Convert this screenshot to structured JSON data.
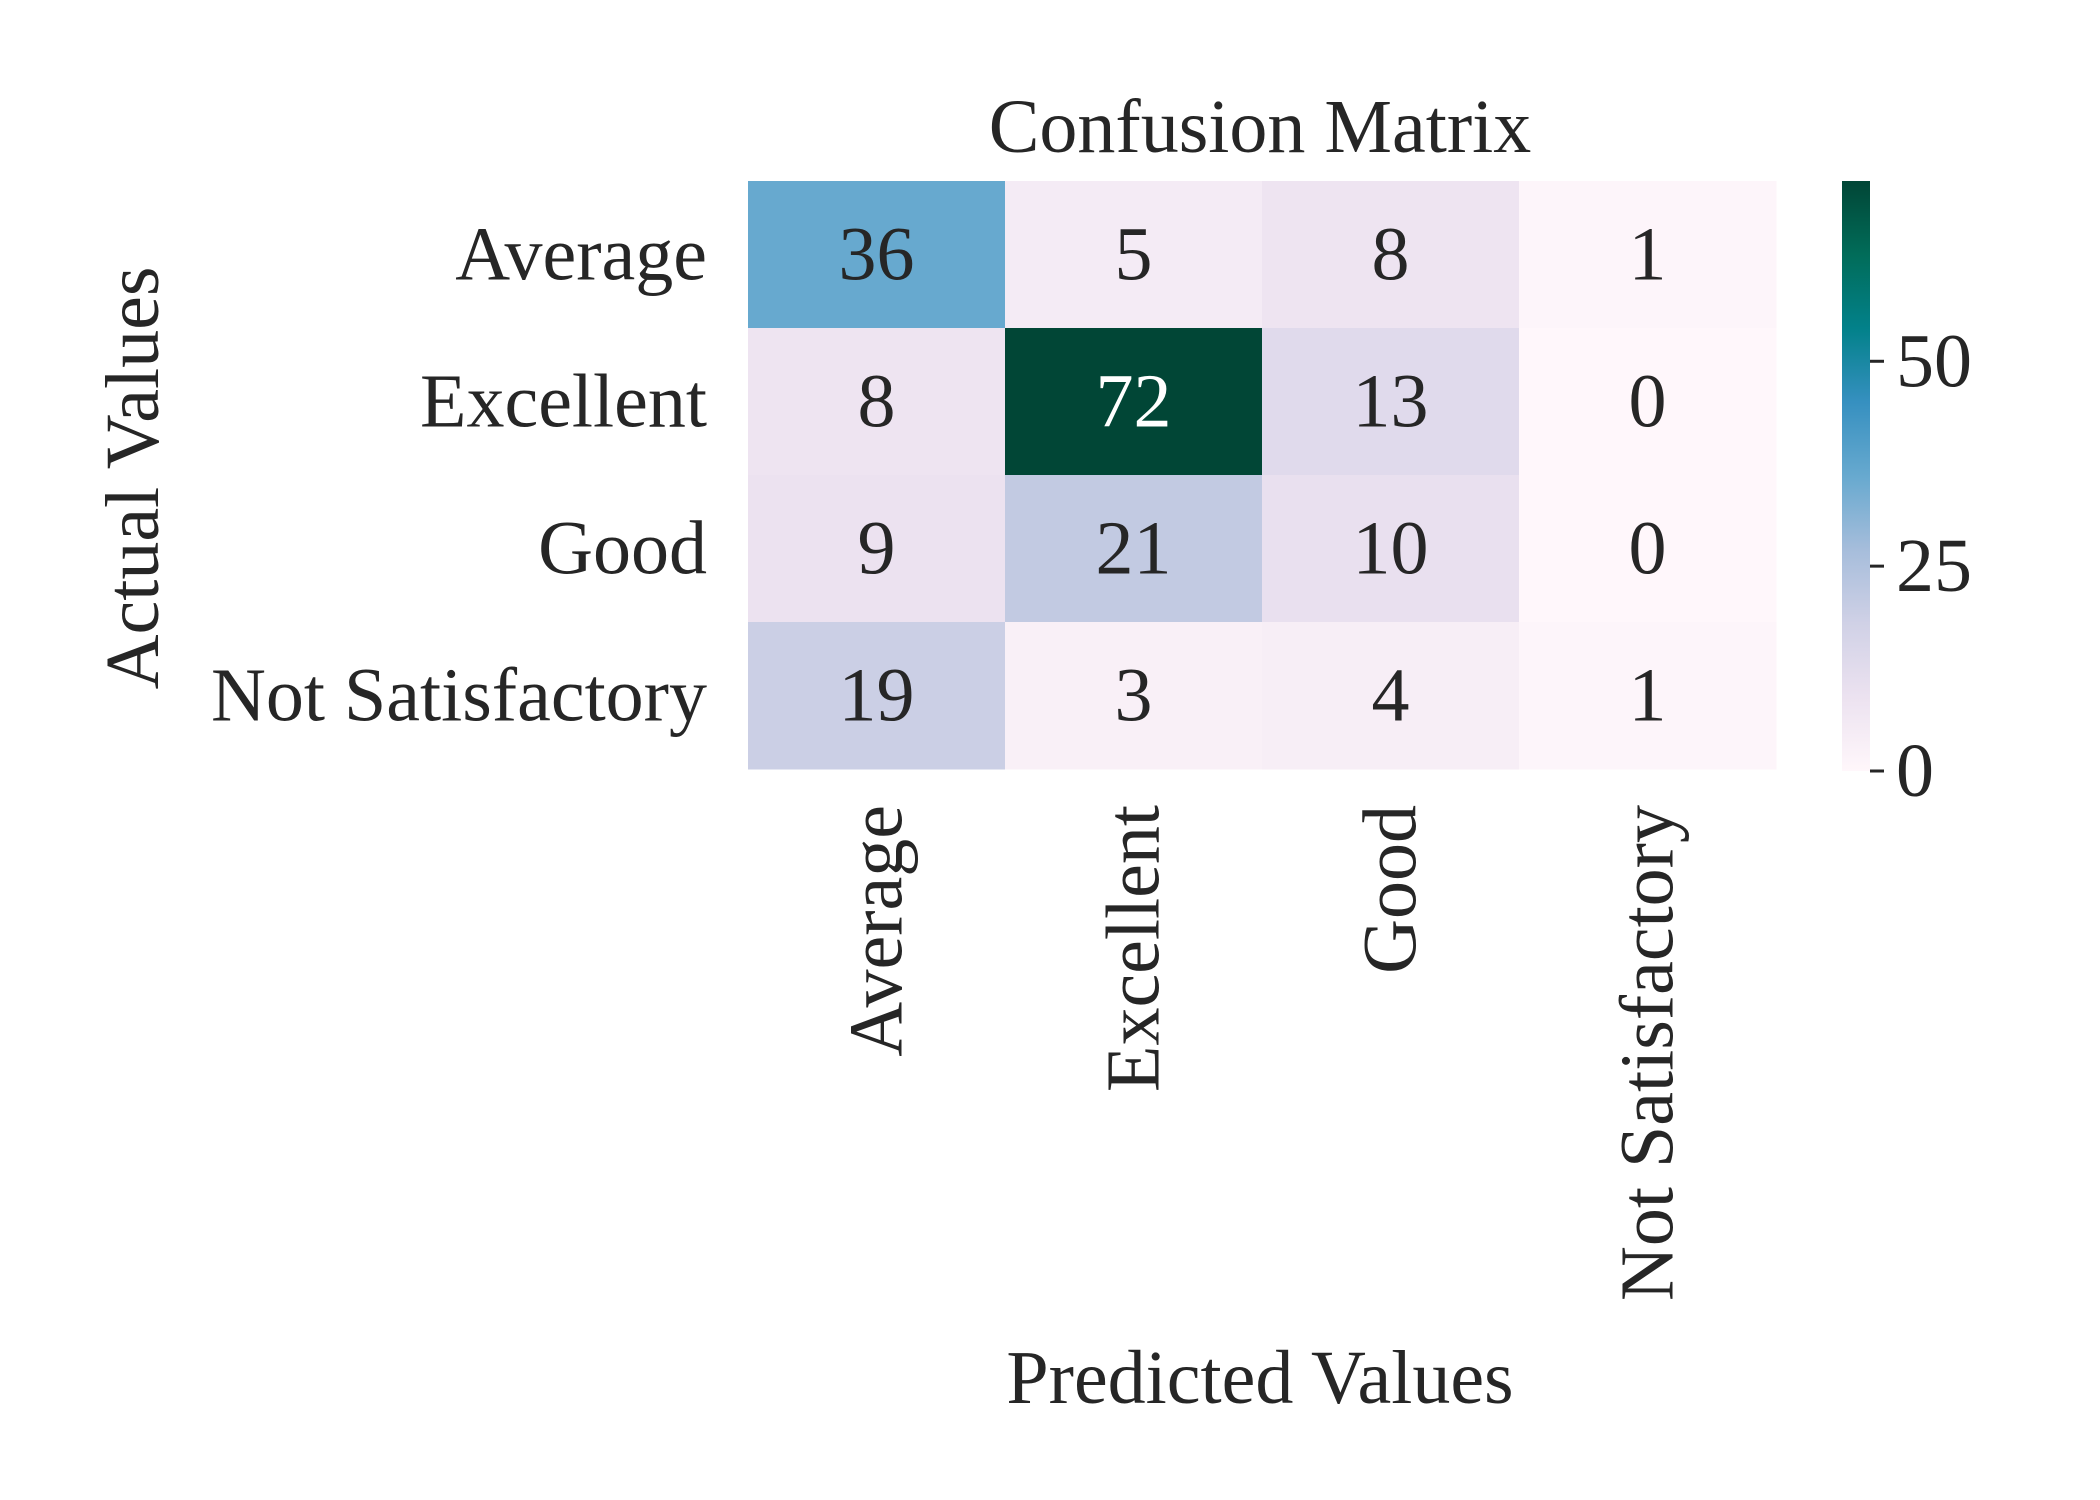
{
  "chart_data": {
    "type": "heatmap",
    "title": "Confusion Matrix",
    "xlabel": "Predicted Values",
    "ylabel": "Actual Values",
    "row_labels": [
      "Average",
      "Excellent",
      "Good",
      "Not Satisfactory"
    ],
    "col_labels": [
      "Average",
      "Excellent",
      "Good",
      "Not Satisfactory"
    ],
    "values": [
      [
        36,
        5,
        8,
        1
      ],
      [
        8,
        72,
        13,
        0
      ],
      [
        9,
        21,
        10,
        0
      ],
      [
        19,
        3,
        4,
        1
      ]
    ],
    "colormap": "PuBuGn",
    "color_range": [
      0,
      72
    ],
    "colorbar": {
      "ticks": [
        0,
        25,
        50
      ],
      "tick_labels": [
        "0",
        "25",
        "50"
      ]
    },
    "annotation_text_colors": {
      "dark": "#262626",
      "light": "#ffffff"
    },
    "colormap_stops": [
      "#fff7fb",
      "#ece2f0",
      "#d0d1e6",
      "#a6bddb",
      "#67a9cf",
      "#3690c0",
      "#02818a",
      "#016c59",
      "#014636"
    ]
  }
}
